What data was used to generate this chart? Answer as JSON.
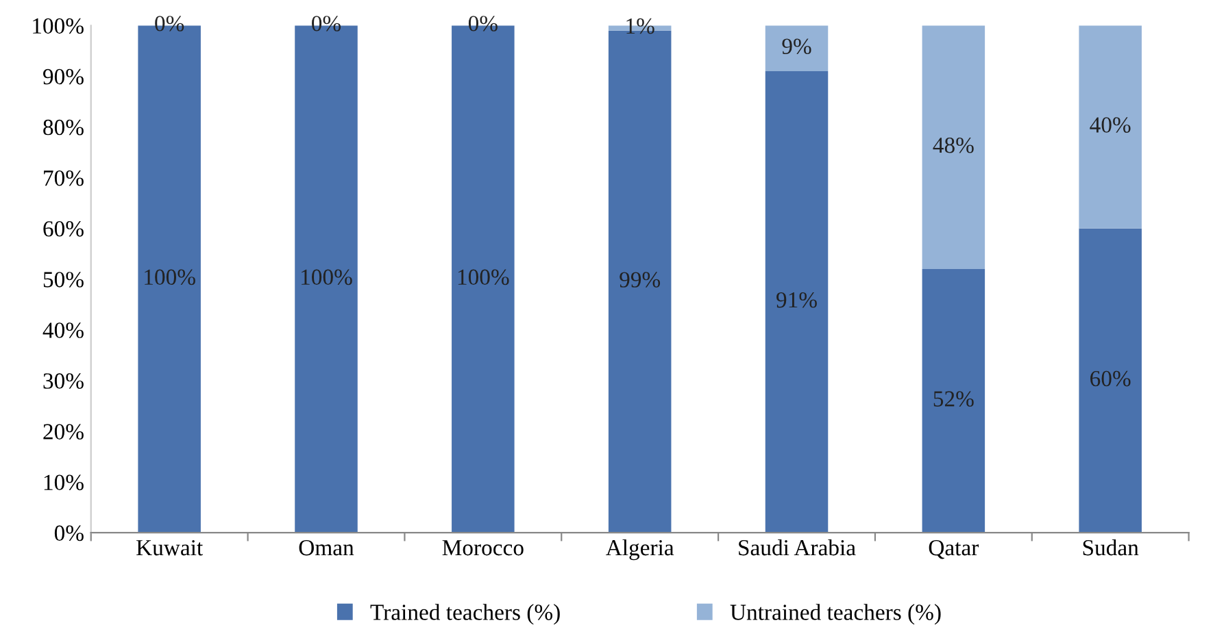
{
  "chart_data": {
    "type": "bar",
    "stacked": true,
    "categories": [
      "Kuwait",
      "Oman",
      "Morocco",
      "Algeria",
      "Saudi Arabia",
      "Qatar",
      "Sudan"
    ],
    "series": [
      {
        "name": "Trained teachers (%)",
        "color": "#4a72ad",
        "values": [
          100,
          100,
          100,
          99,
          91,
          52,
          60
        ],
        "value_labels": [
          "100%",
          "100%",
          "100%",
          "99%",
          "91%",
          "52%",
          "60%"
        ]
      },
      {
        "name": "Untrained teachers (%)",
        "color": "#95b3d7",
        "values": [
          0,
          0,
          0,
          1,
          9,
          48,
          40
        ],
        "value_labels": [
          "0%",
          "0%",
          "0%",
          "1%",
          "9%",
          "48%",
          "40%"
        ]
      }
    ],
    "ylim": [
      0,
      100
    ],
    "yticks": [
      {
        "value": 0,
        "label": "0%"
      },
      {
        "value": 10,
        "label": "10%"
      },
      {
        "value": 20,
        "label": "20%"
      },
      {
        "value": 30,
        "label": "30%"
      },
      {
        "value": 40,
        "label": "40%"
      },
      {
        "value": 50,
        "label": "50%"
      },
      {
        "value": 60,
        "label": "60%"
      },
      {
        "value": 70,
        "label": "70%"
      },
      {
        "value": 80,
        "label": "80%"
      },
      {
        "value": 90,
        "label": "90%"
      },
      {
        "value": 100,
        "label": "100%"
      }
    ],
    "grid": false,
    "legend": "bottom"
  }
}
